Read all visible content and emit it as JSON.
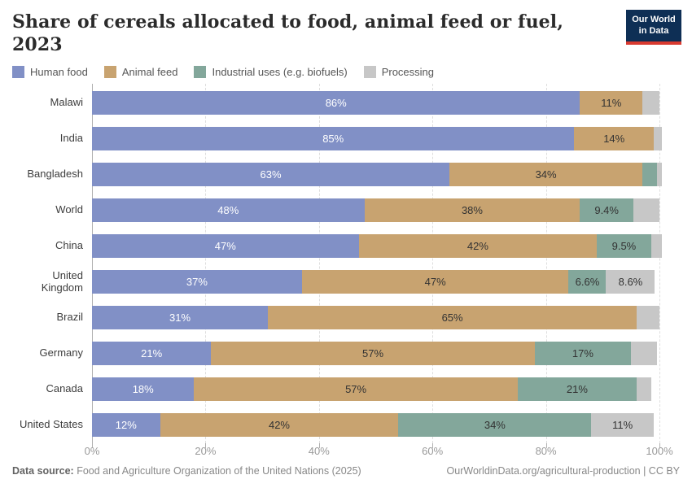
{
  "header": {
    "title": "Share of cereals allocated to food, animal feed or fuel, 2023",
    "logo": {
      "line1": "Our World",
      "line2": "in Data",
      "bg_color": "#0e2f55",
      "accent_color": "#d93a30"
    }
  },
  "legend": [
    {
      "label": "Human food",
      "color": "#8190c6"
    },
    {
      "label": "Animal feed",
      "color": "#c8a370"
    },
    {
      "label": "Industrial uses (e.g. biofuels)",
      "color": "#83a79b"
    },
    {
      "label": "Processing",
      "color": "#c7c7c7"
    }
  ],
  "chart_data": {
    "type": "bar",
    "orientation": "horizontal",
    "stacked": true,
    "title": "Share of cereals allocated to food, animal feed or fuel, 2023",
    "categories": [
      "Malawi",
      "India",
      "Bangladesh",
      "World",
      "China",
      "United Kingdom",
      "Brazil",
      "Germany",
      "Canada",
      "United States"
    ],
    "series": [
      {
        "name": "Human food",
        "color": "#8190c6",
        "label_color": "#ffffff",
        "values": [
          86,
          85,
          63,
          48,
          47,
          37,
          31,
          21,
          18,
          12
        ],
        "labels": [
          "86%",
          "85%",
          "63%",
          "48%",
          "47%",
          "37%",
          "31%",
          "21%",
          "18%",
          "12%"
        ]
      },
      {
        "name": "Animal feed",
        "color": "#c8a370",
        "label_color": "#333333",
        "values": [
          11,
          14,
          34,
          38,
          42,
          47,
          65,
          57,
          57,
          42
        ],
        "labels": [
          "11%",
          "14%",
          "34%",
          "38%",
          "42%",
          "47%",
          "65%",
          "57%",
          "57%",
          "42%"
        ]
      },
      {
        "name": "Industrial uses (e.g. biofuels)",
        "color": "#83a79b",
        "label_color": "#333333",
        "values": [
          0,
          0,
          2.5,
          9.4,
          9.5,
          6.6,
          0,
          17,
          21,
          34
        ],
        "labels": [
          "",
          "",
          "",
          "9.4%",
          "9.5%",
          "6.6%",
          "",
          "17%",
          "21%",
          "34%"
        ]
      },
      {
        "name": "Processing",
        "color": "#c7c7c7",
        "label_color": "#333333",
        "values": [
          3,
          1.5,
          1,
          4.6,
          2,
          8.6,
          4,
          4.5,
          2.5,
          11
        ],
        "labels": [
          "",
          "",
          "",
          "",
          "",
          "8.6%",
          "",
          "",
          "",
          "11%"
        ]
      }
    ],
    "xlim": [
      0,
      100
    ],
    "x_ticks": [
      {
        "label": "0%",
        "value": 0
      },
      {
        "label": "20%",
        "value": 20
      },
      {
        "label": "40%",
        "value": 40
      },
      {
        "label": "60%",
        "value": 60
      },
      {
        "label": "80%",
        "value": 80
      },
      {
        "label": "100%",
        "value": 100
      }
    ],
    "grid": "dashed-vertical",
    "legend_position": "top"
  },
  "footer": {
    "source_label": "Data source:",
    "source_text": " Food and Agriculture Organization of the United Nations (2025)",
    "credit": "OurWorldinData.org/agricultural-production | CC BY"
  }
}
